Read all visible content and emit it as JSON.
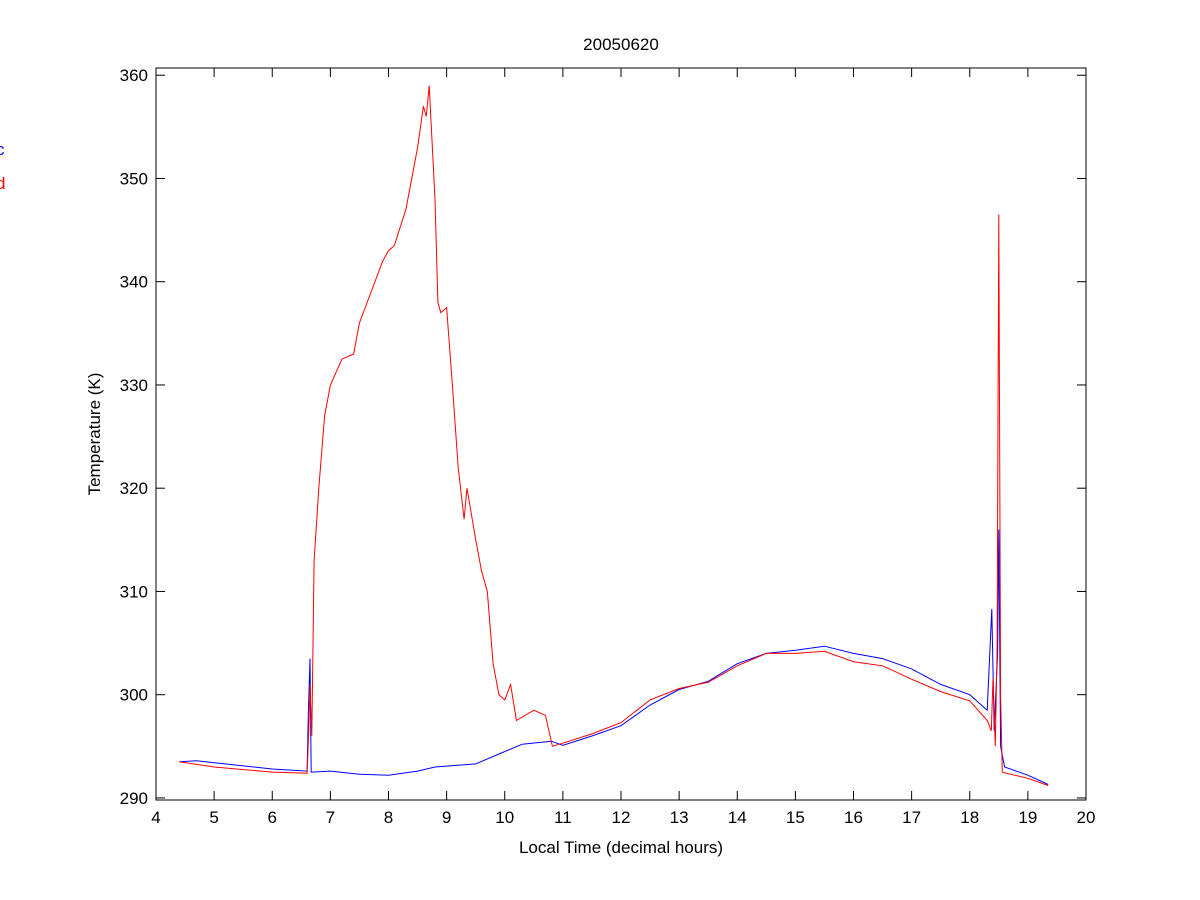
{
  "chart_data": {
    "type": "line",
    "title": "20050620",
    "xlabel": "Local Time (decimal hours)",
    "ylabel": "Temperature (K)",
    "xlim": [
      4,
      20
    ],
    "ylim": [
      289.8,
      360.7
    ],
    "xticks": [
      4,
      5,
      6,
      7,
      8,
      9,
      10,
      11,
      12,
      13,
      14,
      15,
      16,
      17,
      18,
      19,
      20
    ],
    "yticks": [
      290,
      300,
      310,
      320,
      330,
      340,
      350,
      360
    ],
    "grid": false,
    "legend": {
      "placement": "left-outside-clipped",
      "entries": [
        "c",
        "d"
      ]
    },
    "series": [
      {
        "name": "c",
        "color": "#0000ff",
        "x": [
          4.4,
          4.7,
          5.5,
          6,
          6.6,
          6.62,
          6.65,
          6.67,
          7,
          7.5,
          8,
          8.5,
          8.8,
          9.5,
          10,
          10.3,
          10.8,
          11,
          11.5,
          12,
          12.5,
          13,
          13.5,
          14,
          14.5,
          15,
          15.5,
          16,
          16.5,
          17,
          17.5,
          18,
          18.3,
          18.38,
          18.42,
          18.48,
          18.5,
          18.53,
          18.6,
          19,
          19.35
        ],
        "y": [
          293.5,
          293.6,
          293.1,
          292.8,
          292.6,
          298,
          303.5,
          292.5,
          292.6,
          292.3,
          292.2,
          292.6,
          293.0,
          293.3,
          294.5,
          295.2,
          295.5,
          295.1,
          296,
          297,
          299,
          300.5,
          301.3,
          303,
          304,
          304.3,
          304.7,
          304,
          303.5,
          302.5,
          301,
          300,
          298.5,
          308.3,
          296.5,
          304,
          316,
          295,
          293,
          292.2,
          291.3
        ]
      },
      {
        "name": "d",
        "color": "#ff0000",
        "x": [
          4.4,
          5,
          6,
          6.6,
          6.63,
          6.65,
          6.68,
          6.72,
          6.8,
          6.9,
          7,
          7.2,
          7.4,
          7.5,
          7.7,
          7.9,
          8,
          8.1,
          8.3,
          8.5,
          8.6,
          8.65,
          8.7,
          8.8,
          8.85,
          8.9,
          9.0,
          9.1,
          9.2,
          9.3,
          9.35,
          9.5,
          9.6,
          9.7,
          9.8,
          9.9,
          10.0,
          10.1,
          10.2,
          10.5,
          10.7,
          10.8,
          10.82,
          11,
          11.5,
          12,
          12.5,
          13,
          13.5,
          14,
          14.5,
          15,
          15.5,
          16,
          16.5,
          17,
          17.5,
          18,
          18.3,
          18.37,
          18.4,
          18.44,
          18.47,
          18.5,
          18.51,
          18.53,
          18.56,
          18.7,
          19,
          19.35
        ],
        "y": [
          293.5,
          293.0,
          292.5,
          292.4,
          297,
          301,
          296,
          313,
          320,
          327,
          330,
          332.5,
          333,
          336,
          339,
          342,
          343,
          343.5,
          347,
          353,
          357,
          356,
          359,
          348,
          338,
          337,
          337.5,
          330,
          322,
          317,
          320,
          315,
          312,
          310,
          303,
          300,
          299.5,
          301,
          297.5,
          298.5,
          298,
          295.5,
          295,
          295.3,
          296.2,
          297.3,
          299.5,
          300.6,
          301.2,
          302.8,
          304,
          304,
          304.2,
          303.2,
          302.8,
          301.5,
          300.3,
          299.4,
          297.5,
          296.5,
          301.6,
          295,
          304.5,
          346.5,
          331,
          300,
          292.5,
          292.3,
          291.9,
          291.2
        ]
      }
    ]
  }
}
